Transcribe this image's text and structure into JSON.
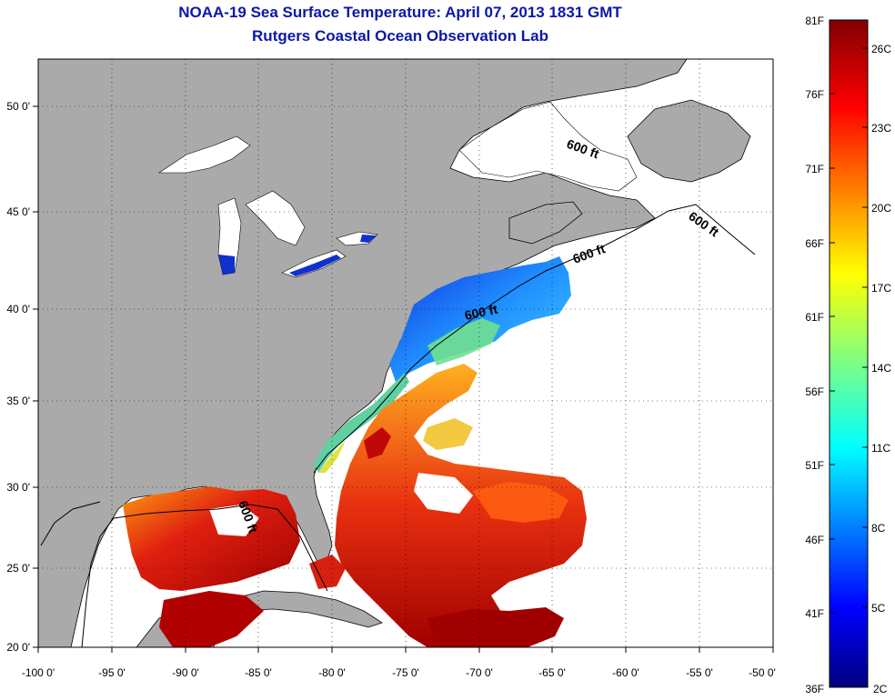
{
  "title": "NOAA-19 Sea Surface Temperature:  April 07, 2013 1831 GMT",
  "subtitle": "Rutgers Coastal Ocean Observation Lab",
  "map": {
    "lon_ticks": [
      "-100 0'",
      "-95 0'",
      "-90 0'",
      "-85 0'",
      "-80 0'",
      "-75 0'",
      "-70 0'",
      "-65 0'",
      "-60 0'",
      "-55 0'",
      "-50 0'"
    ],
    "lat_ticks": [
      "50 0'",
      "45 0'",
      "40 0'",
      "35 0'",
      "30 0'",
      "25 0'",
      "20 0'"
    ],
    "lon_range": [
      -100,
      -50
    ],
    "lat_range": [
      20,
      52
    ],
    "land_color": "#aaaaaa",
    "grid": true,
    "contour_label": "600 ft"
  },
  "colorbar": {
    "f_labels": [
      "81F",
      "76F",
      "71F",
      "66F",
      "61F",
      "56F",
      "51F",
      "46F",
      "41F",
      "36F"
    ],
    "c_labels": [
      "26C",
      "23C",
      "20C",
      "17C",
      "14C",
      "11C",
      "8C",
      "5C",
      "2C"
    ],
    "colors": [
      "#000080",
      "#0000ff",
      "#0080ff",
      "#00ffff",
      "#80ff80",
      "#ffff00",
      "#ff8000",
      "#ff0000",
      "#800000"
    ]
  }
}
